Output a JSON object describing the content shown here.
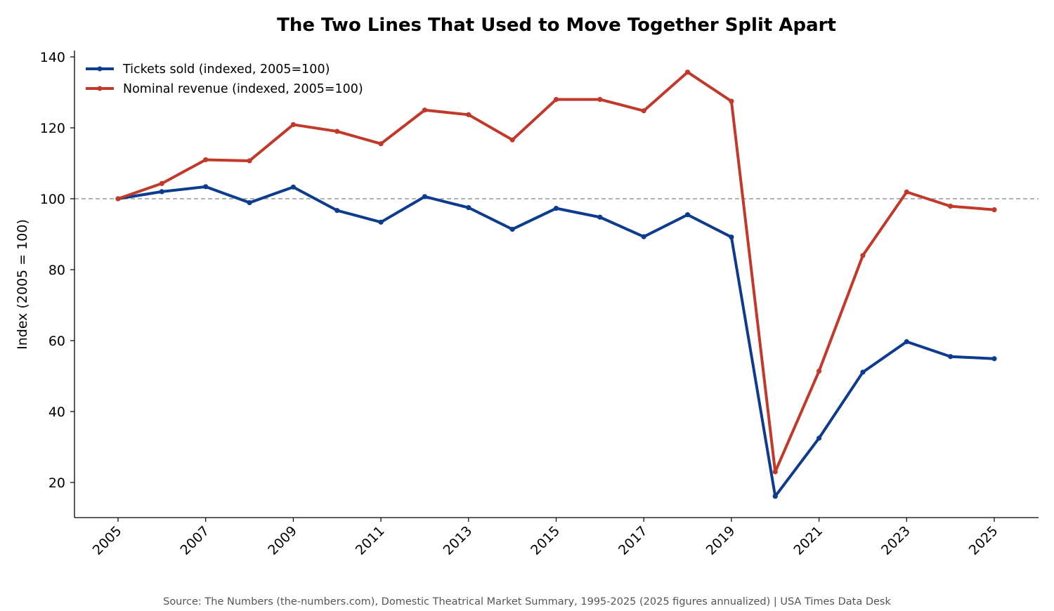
{
  "chart_data": {
    "type": "line",
    "title": "The Two Lines That Used to Move Together Split Apart",
    "xlabel": "",
    "ylabel": "Index (2005 = 100)",
    "x": [
      2005,
      2006,
      2007,
      2008,
      2009,
      2010,
      2011,
      2012,
      2013,
      2014,
      2015,
      2016,
      2017,
      2018,
      2019,
      2020,
      2021,
      2022,
      2023,
      2024,
      2025
    ],
    "x_tick_labels": [
      "2005",
      "2007",
      "2009",
      "2011",
      "2013",
      "2015",
      "2017",
      "2019",
      "2021",
      "2023",
      "2025"
    ],
    "y_tick_labels": [
      "20",
      "40",
      "60",
      "80",
      "100",
      "120",
      "140"
    ],
    "ylim": [
      10,
      142
    ],
    "xlim": [
      2004,
      2026
    ],
    "grid": false,
    "reference_line": {
      "y": 100,
      "style": "dashed",
      "color": "#999999"
    },
    "legend_position": "top-left",
    "series": [
      {
        "name": "Tickets sold (indexed, 2005=100)",
        "color": "#0d3b8e",
        "values": [
          100,
          102,
          103.4,
          98.9,
          103.3,
          96.7,
          93.4,
          100.6,
          97.5,
          91.4,
          97.3,
          94.8,
          89.3,
          95.5,
          89.2,
          16.1,
          32.5,
          51.1,
          59.7,
          55.5,
          54.9
        ]
      },
      {
        "name": "Nominal revenue (indexed, 2005=100)",
        "color": "#c0392b",
        "values": [
          100,
          104.3,
          111,
          110.7,
          120.9,
          119,
          115.5,
          125,
          123.7,
          116.6,
          128,
          128,
          124.8,
          135.7,
          127.5,
          23,
          51.4,
          84,
          101.9,
          97.9,
          96.9
        ]
      }
    ],
    "source": "Source: The Numbers (the-numbers.com), Domestic Theatrical Market Summary, 1995-2025 (2025 figures annualized) | USA Times Data Desk"
  }
}
